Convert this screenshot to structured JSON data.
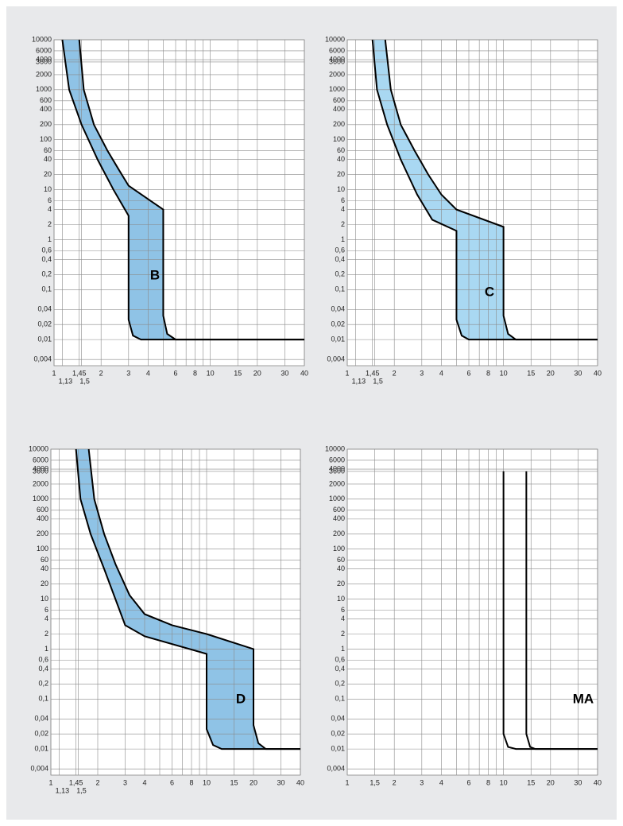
{
  "chart_data": [
    {
      "type": "band",
      "label": "B",
      "color": "#8fc3e6",
      "log_x": true,
      "log_y": true,
      "grid": true,
      "xlim": [
        1,
        40
      ],
      "ylim": [
        0.003,
        10000
      ],
      "xticks": [
        1,
        {
          "value": 1.13,
          "label": "1,13"
        },
        {
          "value": 1.45,
          "label": "1,45"
        },
        {
          "value": 1.5,
          "label": "1,5"
        },
        2,
        3,
        4,
        6,
        8,
        10,
        15,
        20,
        30,
        40
      ],
      "xminor": [
        5,
        7,
        9
      ],
      "yticks": [
        10000,
        6000,
        4000,
        3600,
        2000,
        1000,
        600,
        400,
        200,
        100,
        60,
        40,
        20,
        10,
        6,
        4,
        2,
        1,
        {
          "value": 0.6,
          "label": "0,6"
        },
        {
          "value": 0.4,
          "label": "0,4"
        },
        {
          "value": 0.2,
          "label": "0,2"
        },
        {
          "value": 0.1,
          "label": "0,1"
        },
        {
          "value": 0.04,
          "label": "0,04"
        },
        {
          "value": 0.02,
          "label": "0,02"
        },
        {
          "value": 0.01,
          "label": "0,01"
        },
        {
          "value": 0.004,
          "label": "0,004"
        }
      ],
      "series": [
        {
          "x": [
            1.45,
            1.55,
            1.8,
            2.2,
            2.6,
            3,
            5,
            5,
            5.3,
            6,
            40
          ],
          "values": [
            10000,
            1000,
            200,
            60,
            25,
            12,
            4,
            0.03,
            0.013,
            0.01,
            0.01
          ]
        },
        {
          "x": [
            1.13,
            1.25,
            1.5,
            1.9,
            2.4,
            3,
            3,
            3.2,
            3.6,
            40
          ],
          "values": [
            10000,
            1000,
            200,
            40,
            10,
            3,
            0.025,
            0.012,
            0.01,
            0.01
          ]
        }
      ]
    },
    {
      "type": "band",
      "label": "C",
      "color": "#a9d8f2",
      "log_x": true,
      "log_y": true,
      "grid": true,
      "xlim": [
        1,
        40
      ],
      "ylim": [
        0.003,
        10000
      ],
      "xticks": [
        1,
        {
          "value": 1.13,
          "label": "1,13"
        },
        {
          "value": 1.45,
          "label": "1,45"
        },
        {
          "value": 1.5,
          "label": "1,5"
        },
        2,
        3,
        4,
        6,
        8,
        10,
        15,
        20,
        30,
        40
      ],
      "xminor": [
        5,
        7,
        9
      ],
      "yticks": [
        10000,
        6000,
        4000,
        3600,
        2000,
        1000,
        600,
        400,
        200,
        100,
        60,
        40,
        20,
        10,
        6,
        4,
        2,
        1,
        {
          "value": 0.6,
          "label": "0,6"
        },
        {
          "value": 0.4,
          "label": "0,4"
        },
        {
          "value": 0.2,
          "label": "0,2"
        },
        {
          "value": 0.1,
          "label": "0,1"
        },
        {
          "value": 0.04,
          "label": "0,04"
        },
        {
          "value": 0.02,
          "label": "0,02"
        },
        {
          "value": 0.01,
          "label": "0,01"
        },
        {
          "value": 0.004,
          "label": "0,004"
        }
      ],
      "series": [
        {
          "x": [
            1.75,
            1.9,
            2.2,
            2.7,
            3.3,
            4,
            5,
            10,
            10,
            10.7,
            12,
            40
          ],
          "values": [
            10000,
            1000,
            200,
            60,
            20,
            8,
            4,
            1.8,
            0.03,
            0.013,
            0.01,
            0.01
          ]
        },
        {
          "x": [
            1.45,
            1.55,
            1.8,
            2.2,
            2.8,
            3.5,
            5,
            5,
            5.4,
            6,
            40
          ],
          "values": [
            10000,
            1000,
            200,
            40,
            8,
            2.5,
            1.5,
            0.025,
            0.012,
            0.01,
            0.01
          ]
        }
      ]
    },
    {
      "type": "band",
      "label": "D",
      "color": "#8fc3e6",
      "log_x": true,
      "log_y": true,
      "grid": true,
      "xlim": [
        1,
        40
      ],
      "ylim": [
        0.003,
        10000
      ],
      "xticks": [
        1,
        {
          "value": 1.13,
          "label": "1,13"
        },
        {
          "value": 1.45,
          "label": "1,45"
        },
        {
          "value": 1.5,
          "label": "1,5"
        },
        2,
        3,
        4,
        6,
        8,
        10,
        15,
        20,
        30,
        40
      ],
      "xminor": [
        5,
        7,
        9
      ],
      "yticks": [
        10000,
        6000,
        4000,
        3600,
        2000,
        1000,
        600,
        400,
        200,
        100,
        60,
        40,
        20,
        10,
        6,
        4,
        2,
        1,
        {
          "value": 0.6,
          "label": "0,6"
        },
        {
          "value": 0.4,
          "label": "0,4"
        },
        {
          "value": 0.2,
          "label": "0,2"
        },
        {
          "value": 0.1,
          "label": "0,1"
        },
        {
          "value": 0.04,
          "label": "0,04"
        },
        {
          "value": 0.02,
          "label": "0,02"
        },
        {
          "value": 0.01,
          "label": "0,01"
        },
        {
          "value": 0.004,
          "label": "0,004"
        }
      ],
      "series": [
        {
          "x": [
            1.75,
            1.9,
            2.2,
            2.6,
            3.2,
            4,
            6,
            10,
            20,
            20,
            21.5,
            24,
            40
          ],
          "values": [
            10000,
            1000,
            200,
            50,
            12,
            5,
            3,
            2,
            1,
            0.03,
            0.013,
            0.01,
            0.01
          ]
        },
        {
          "x": [
            1.45,
            1.55,
            1.8,
            2.2,
            3,
            4,
            10,
            10,
            11,
            12.5,
            40
          ],
          "values": [
            10000,
            1000,
            200,
            40,
            3,
            1.8,
            0.8,
            0.025,
            0.012,
            0.01,
            0.01
          ]
        }
      ]
    },
    {
      "type": "line",
      "label": "MA",
      "color": "#000000",
      "log_x": true,
      "log_y": true,
      "grid": true,
      "xlim": [
        1,
        40
      ],
      "ylim": [
        0.003,
        10000
      ],
      "xticks": [
        1,
        {
          "value": 1.5,
          "label": "1,5"
        },
        2,
        3,
        4,
        6,
        8,
        10,
        15,
        20,
        30,
        40
      ],
      "xminor": [
        5,
        7,
        9
      ],
      "yticks": [
        10000,
        6000,
        4000,
        3600,
        2000,
        1000,
        600,
        400,
        200,
        100,
        60,
        40,
        20,
        10,
        6,
        4,
        2,
        1,
        {
          "value": 0.6,
          "label": "0,6"
        },
        {
          "value": 0.4,
          "label": "0,4"
        },
        {
          "value": 0.2,
          "label": "0,2"
        },
        {
          "value": 0.1,
          "label": "0,1"
        },
        {
          "value": 0.04,
          "label": "0,04"
        },
        {
          "value": 0.02,
          "label": "0,02"
        },
        {
          "value": 0.01,
          "label": "0,01"
        },
        {
          "value": 0.004,
          "label": "0,004"
        }
      ],
      "series": [
        {
          "x": [
            10,
            10,
            10.7,
            12,
            40
          ],
          "values": [
            3600,
            0.02,
            0.011,
            0.01,
            0.01
          ]
        },
        {
          "x": [
            14,
            14,
            14.8,
            16,
            40
          ],
          "values": [
            3600,
            0.02,
            0.011,
            0.01,
            0.01
          ]
        }
      ]
    }
  ]
}
